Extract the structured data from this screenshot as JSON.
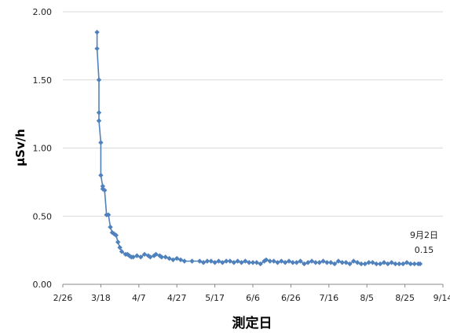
{
  "chart_data": {
    "type": "line",
    "title": "",
    "xlabel": "測定日",
    "ylabel": "μSv/h",
    "ylim": [
      0,
      2.0
    ],
    "yticks": [
      "0.00",
      "0.50",
      "1.00",
      "1.50",
      "2.00"
    ],
    "xticks": [
      "2/26",
      "3/18",
      "4/7",
      "4/27",
      "5/17",
      "6/6",
      "6/26",
      "7/16",
      "8/5",
      "8/25",
      "9/14"
    ],
    "grid": "horizontal",
    "legend": "none",
    "series_color": "#4F81BD",
    "annotation": {
      "label": "9月2日",
      "value": "0.15",
      "x": "9/2",
      "y": 0.15
    },
    "series": [
      {
        "x": [
          "3/16",
          "3/16",
          "3/17",
          "3/17",
          "3/17",
          "3/18",
          "3/18",
          "3/19",
          "3/19",
          "3/20",
          "3/21",
          "3/22",
          "3/23",
          "3/24",
          "3/25",
          "3/26",
          "3/27",
          "3/28",
          "3/29",
          "3/31",
          "4/1",
          "4/2",
          "4/3",
          "4/4",
          "4/6",
          "4/8",
          "4/10",
          "4/12",
          "4/13",
          "4/15",
          "4/16",
          "4/18",
          "4/19",
          "4/21",
          "4/23",
          "4/25",
          "4/27",
          "4/29",
          "5/1",
          "5/5",
          "5/9",
          "5/11",
          "5/13",
          "5/15",
          "5/17",
          "5/19",
          "5/21",
          "5/23",
          "5/25",
          "5/27",
          "5/29",
          "5/31",
          "6/2",
          "6/4",
          "6/6",
          "6/8",
          "6/10",
          "6/12",
          "6/13",
          "6/15",
          "6/17",
          "6/19",
          "6/21",
          "6/23",
          "6/25",
          "6/27",
          "6/29",
          "7/1",
          "7/3",
          "7/5",
          "7/7",
          "7/9",
          "7/11",
          "7/13",
          "7/15",
          "7/17",
          "7/19",
          "7/21",
          "7/23",
          "7/25",
          "7/27",
          "7/29",
          "7/31",
          "8/2",
          "8/4",
          "8/6",
          "8/8",
          "8/10",
          "8/12",
          "8/14",
          "8/16",
          "8/18",
          "8/20",
          "8/22",
          "8/24",
          "8/26",
          "8/28",
          "8/30",
          "9/1",
          "9/2"
        ],
        "y": [
          1.85,
          1.73,
          1.5,
          1.26,
          1.2,
          1.04,
          0.8,
          0.72,
          0.7,
          0.69,
          0.51,
          0.51,
          0.42,
          0.38,
          0.37,
          0.36,
          0.31,
          0.27,
          0.24,
          0.22,
          0.22,
          0.21,
          0.2,
          0.2,
          0.21,
          0.2,
          0.22,
          0.21,
          0.2,
          0.21,
          0.22,
          0.21,
          0.2,
          0.2,
          0.19,
          0.18,
          0.19,
          0.18,
          0.17,
          0.17,
          0.17,
          0.16,
          0.17,
          0.17,
          0.16,
          0.17,
          0.16,
          0.17,
          0.17,
          0.16,
          0.17,
          0.16,
          0.17,
          0.16,
          0.16,
          0.16,
          0.15,
          0.17,
          0.18,
          0.17,
          0.17,
          0.16,
          0.17,
          0.16,
          0.17,
          0.16,
          0.16,
          0.17,
          0.15,
          0.16,
          0.17,
          0.16,
          0.16,
          0.17,
          0.16,
          0.16,
          0.15,
          0.17,
          0.16,
          0.16,
          0.15,
          0.17,
          0.16,
          0.15,
          0.15,
          0.16,
          0.16,
          0.15,
          0.15,
          0.16,
          0.15,
          0.16,
          0.15,
          0.15,
          0.15,
          0.16,
          0.15,
          0.15,
          0.15,
          0.15
        ]
      }
    ]
  }
}
